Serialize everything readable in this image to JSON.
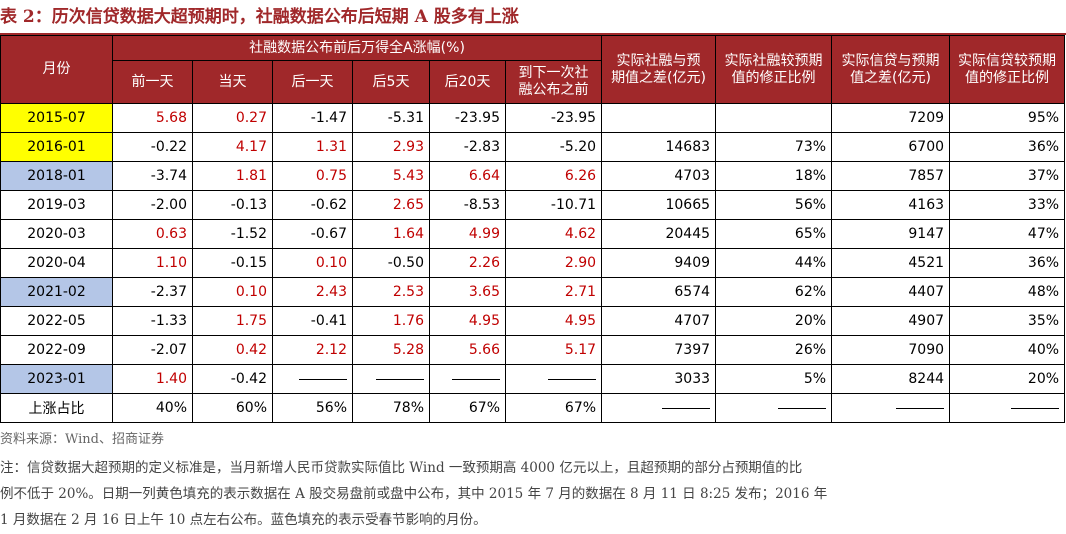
{
  "title": "表 2：历次信贷数据大超预期时，社融数据公布后短期 A 股多有上涨",
  "headers": {
    "month": "月份",
    "group": "社融数据公布前后万得全A涨幅(%)",
    "sub": [
      "前一天",
      "当天",
      "后一天",
      "后5天",
      "后20天",
      "到下一次社融公布之前"
    ],
    "sub_lines": [
      [
        "前一天"
      ],
      [
        "当天"
      ],
      [
        "后一天"
      ],
      [
        "后5天"
      ],
      [
        "后20天"
      ],
      [
        "到下一次社",
        "融公布之前"
      ]
    ],
    "right": [
      [
        "实际社融与预",
        "期值之差(亿元)"
      ],
      [
        "实际社融较预期",
        "值的修正比例"
      ],
      [
        "实际信贷与预期",
        "值之差(亿元)"
      ],
      [
        "实际信贷较预期",
        "值的修正比例"
      ]
    ]
  },
  "rows": [
    {
      "month": "2015-07",
      "fill": "yellow",
      "vals": [
        "5.68",
        "0.27",
        "-1.47",
        "-5.31",
        "-23.95",
        "-23.95"
      ],
      "pink": [
        true,
        true,
        false,
        false,
        false,
        false
      ],
      "red": [
        true,
        true,
        false,
        false,
        false,
        false
      ],
      "r": [
        "",
        "",
        "7209",
        "95%"
      ]
    },
    {
      "month": "2016-01",
      "fill": "yellow",
      "vals": [
        "-0.22",
        "4.17",
        "1.31",
        "2.93",
        "-2.83",
        "-5.20"
      ],
      "pink": [
        false,
        true,
        true,
        true,
        false,
        false
      ],
      "red": [
        false,
        true,
        true,
        true,
        false,
        false
      ],
      "r": [
        "14683",
        "73%",
        "6700",
        "36%"
      ]
    },
    {
      "month": "2018-01",
      "fill": "blue",
      "vals": [
        "-3.74",
        "1.81",
        "0.75",
        "5.43",
        "6.64",
        "6.26"
      ],
      "pink": [
        false,
        true,
        true,
        true,
        true,
        true
      ],
      "red": [
        false,
        true,
        true,
        true,
        true,
        true
      ],
      "r": [
        "4703",
        "18%",
        "7857",
        "37%"
      ]
    },
    {
      "month": "2019-03",
      "fill": "",
      "vals": [
        "-2.00",
        "-0.13",
        "-0.62",
        "2.65",
        "-8.53",
        "-10.71"
      ],
      "pink": [
        false,
        false,
        false,
        true,
        false,
        false
      ],
      "red": [
        false,
        false,
        false,
        true,
        false,
        false
      ],
      "r": [
        "10665",
        "56%",
        "4163",
        "33%"
      ]
    },
    {
      "month": "2020-03",
      "fill": "",
      "vals": [
        "0.63",
        "-1.52",
        "-0.67",
        "1.64",
        "4.99",
        "4.62"
      ],
      "pink": [
        true,
        false,
        false,
        true,
        true,
        true
      ],
      "red": [
        true,
        false,
        false,
        true,
        true,
        true
      ],
      "r": [
        "20445",
        "65%",
        "9147",
        "47%"
      ]
    },
    {
      "month": "2020-04",
      "fill": "",
      "vals": [
        "1.10",
        "-0.15",
        "0.10",
        "-0.50",
        "2.26",
        "2.90"
      ],
      "pink": [
        true,
        false,
        true,
        false,
        true,
        true
      ],
      "red": [
        true,
        false,
        true,
        false,
        true,
        true
      ],
      "r": [
        "9409",
        "44%",
        "4521",
        "36%"
      ]
    },
    {
      "month": "2021-02",
      "fill": "blue",
      "vals": [
        "-2.37",
        "0.10",
        "2.43",
        "2.53",
        "3.65",
        "2.71"
      ],
      "pink": [
        false,
        true,
        true,
        true,
        true,
        true
      ],
      "red": [
        false,
        true,
        true,
        true,
        true,
        true
      ],
      "r": [
        "6574",
        "62%",
        "4407",
        "48%"
      ]
    },
    {
      "month": "2022-05",
      "fill": "",
      "vals": [
        "-1.33",
        "1.75",
        "-0.41",
        "1.76",
        "4.95",
        "4.95"
      ],
      "pink": [
        false,
        true,
        false,
        true,
        true,
        true
      ],
      "red": [
        false,
        true,
        false,
        true,
        true,
        true
      ],
      "r": [
        "4707",
        "20%",
        "4907",
        "35%"
      ]
    },
    {
      "month": "2022-09",
      "fill": "",
      "vals": [
        "-2.07",
        "0.42",
        "2.12",
        "5.28",
        "5.66",
        "5.17"
      ],
      "pink": [
        false,
        true,
        true,
        true,
        true,
        true
      ],
      "red": [
        false,
        true,
        true,
        true,
        true,
        true
      ],
      "r": [
        "7397",
        "26%",
        "7090",
        "40%"
      ]
    },
    {
      "month": "2023-01",
      "fill": "blue",
      "vals": [
        "1.40",
        "-0.42",
        "—",
        "—",
        "—",
        "—"
      ],
      "pink": [
        true,
        false,
        false,
        false,
        false,
        false
      ],
      "red": [
        true,
        false,
        false,
        false,
        false,
        false
      ],
      "r": [
        "3033",
        "5%",
        "8244",
        "20%"
      ]
    },
    {
      "month": "上涨占比",
      "fill": "",
      "vals": [
        "40%",
        "60%",
        "56%",
        "78%",
        "67%",
        "67%"
      ],
      "pink": [
        false,
        false,
        false,
        false,
        false,
        false
      ],
      "red": [
        false,
        false,
        false,
        false,
        false,
        false
      ],
      "r": [
        "—",
        "—",
        "—",
        "—"
      ]
    }
  ],
  "source": "资料来源：Wind、招商证券",
  "note_lines": [
    "注：信贷数据大超预期的定义标准是，当月新增人民币贷款实际值比 Wind 一致预期高 4000 亿元以上，且超预期的部分占预期值的比",
    "例不低于 20%。日期一列黄色填充的表示数据在 A 股交易盘前或盘中公布，其中 2015 年 7 月的数据在 8 月 11 日 8:25 发布；2016 年",
    "1 月数据在 2 月 16 日上午 10 点左右公布。蓝色填充的表示受春节影响的月份。"
  ],
  "colors": {
    "header_bg": "#a0282a",
    "yellow": "#ffff00",
    "blue": "#b4c6e7",
    "pink": "#ffc7ce",
    "red_text": "#c00000"
  }
}
